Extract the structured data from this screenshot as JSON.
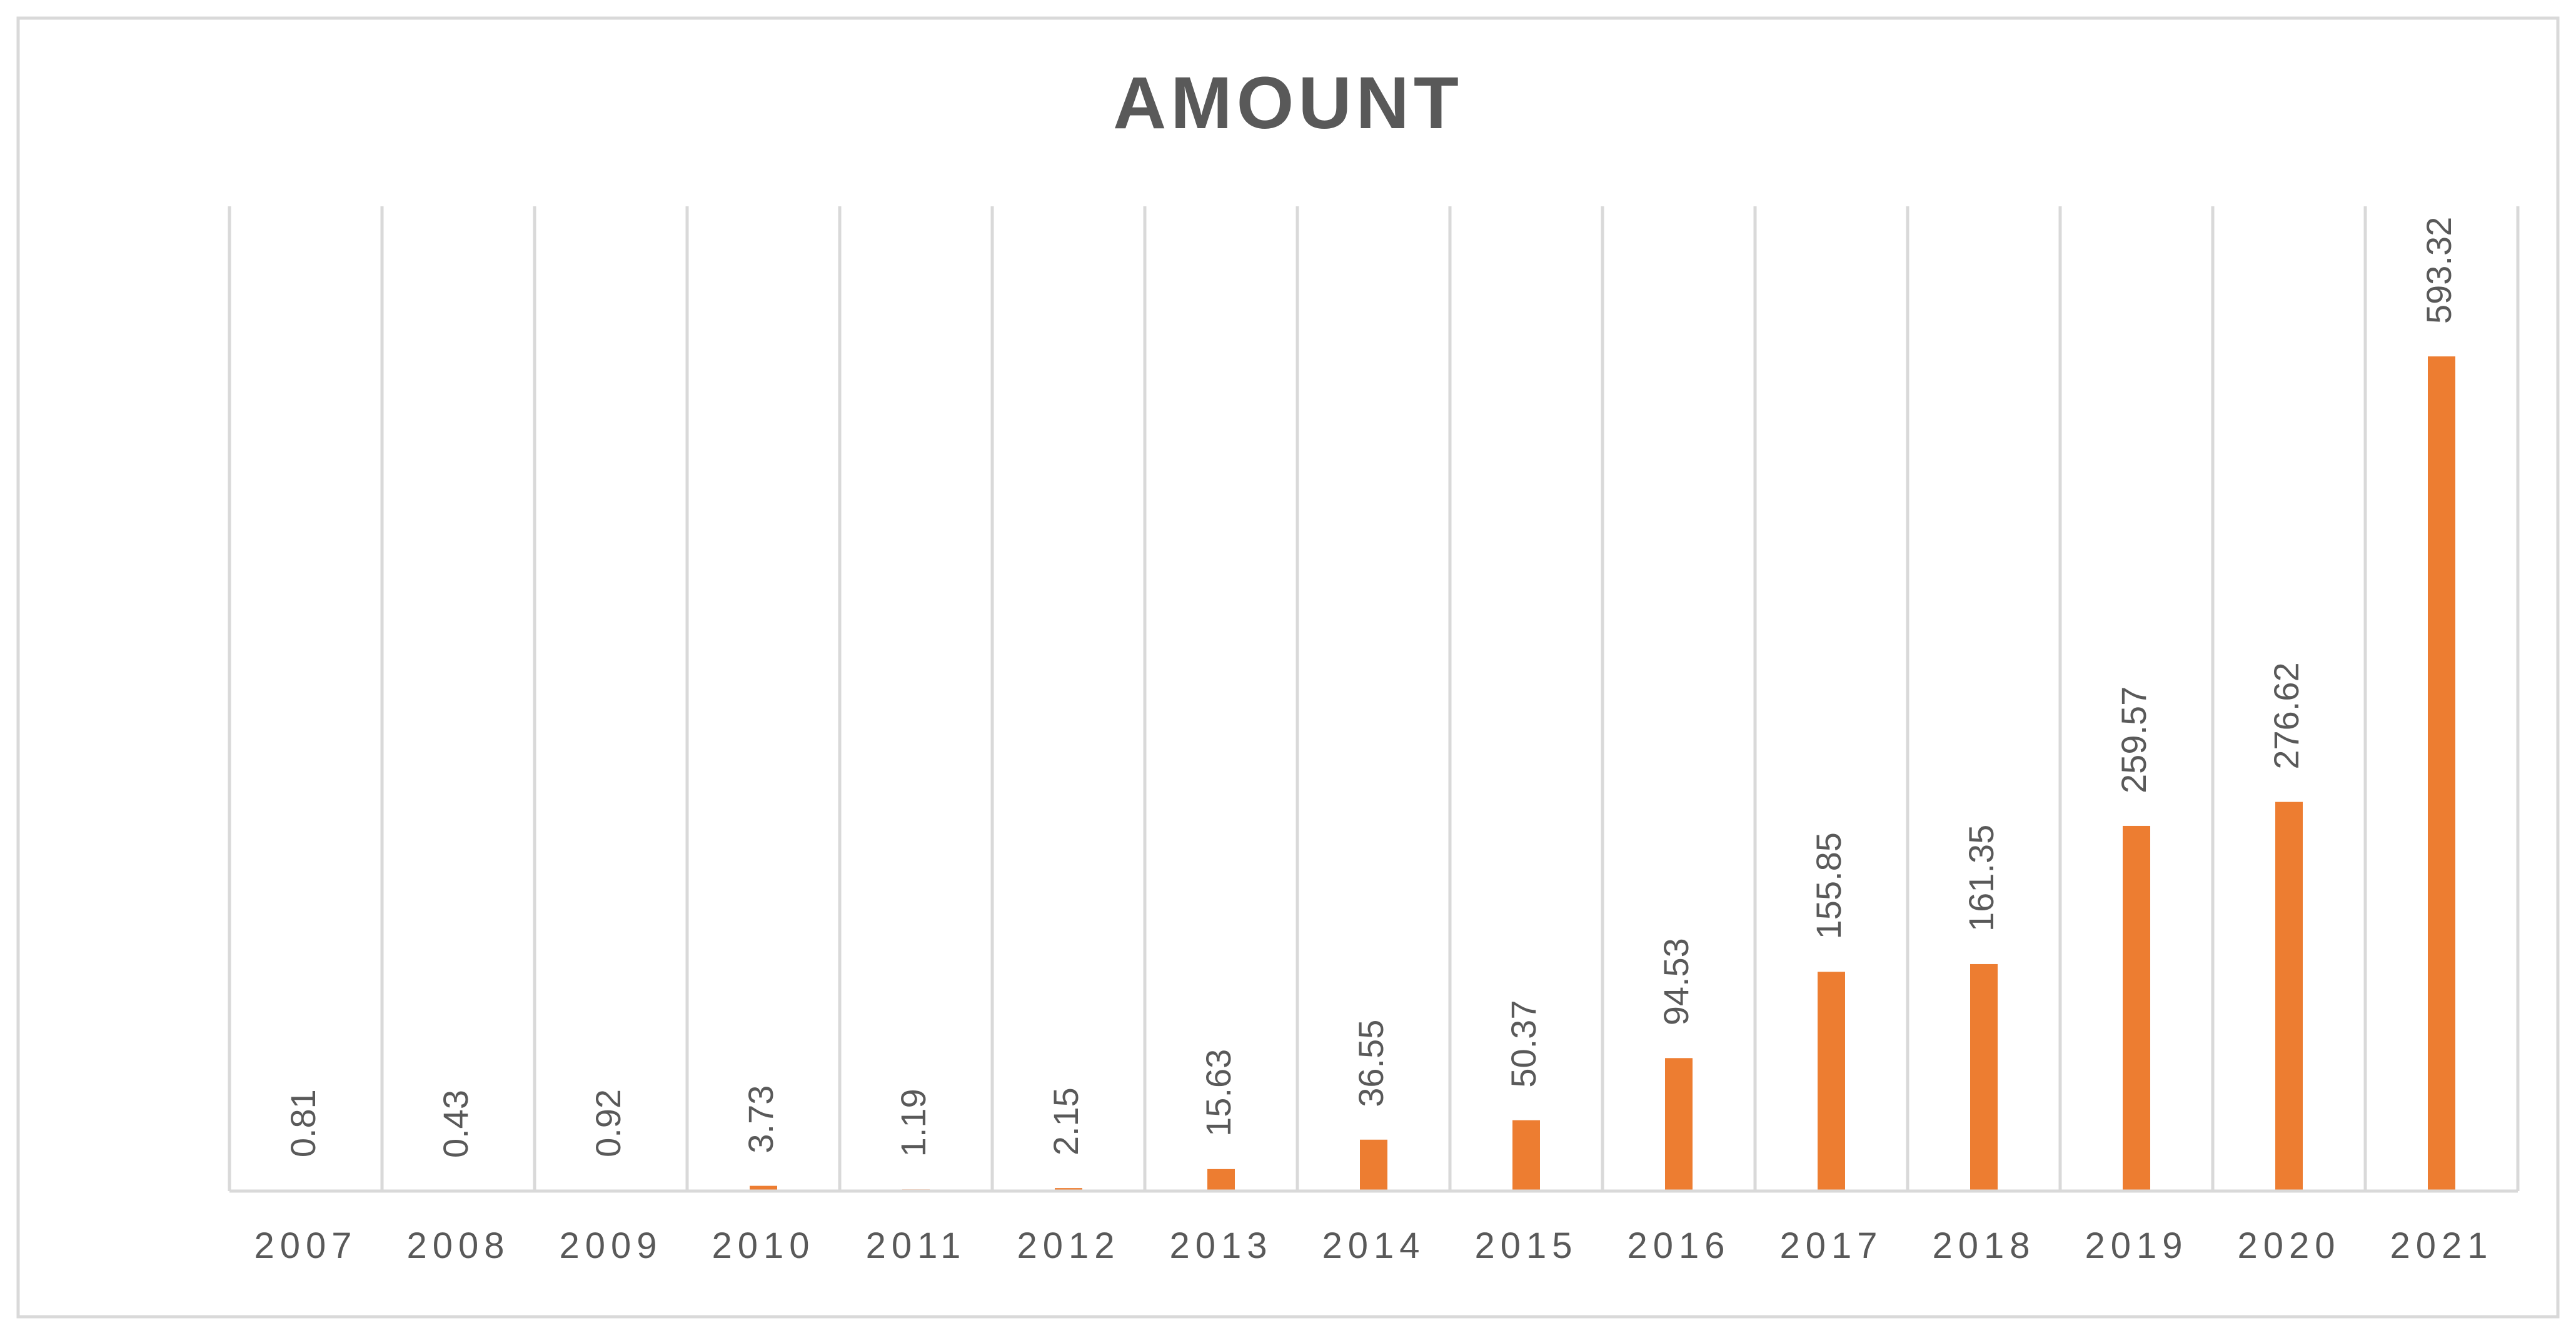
{
  "chart_data": {
    "type": "bar",
    "title": "AMOUNT",
    "xlabel": "",
    "ylabel": "",
    "categories": [
      "2007",
      "2008",
      "2009",
      "2010",
      "2011",
      "2012",
      "2013",
      "2014",
      "2015",
      "2016",
      "2017",
      "2018",
      "2019",
      "2020",
      "2021"
    ],
    "values": [
      0.81,
      0.43,
      0.92,
      3.73,
      1.19,
      2.15,
      15.63,
      36.55,
      50.37,
      94.53,
      155.85,
      161.35,
      259.57,
      276.62,
      593.32
    ],
    "data_labels": [
      "0.81",
      "0.43",
      "0.92",
      "3.73",
      "1.19",
      "2.15",
      "15.63",
      "36.55",
      "50.37",
      "94.53",
      "155.85",
      "161.35",
      "259.57",
      "276.62",
      "593.32"
    ],
    "ylim": [
      0,
      700
    ],
    "grid": "vertical",
    "legend": "none",
    "colors": {
      "bar": "#ED7D31",
      "text": "#595959",
      "grid": "#D9D9D9",
      "frame": "#D9D9D9"
    }
  }
}
